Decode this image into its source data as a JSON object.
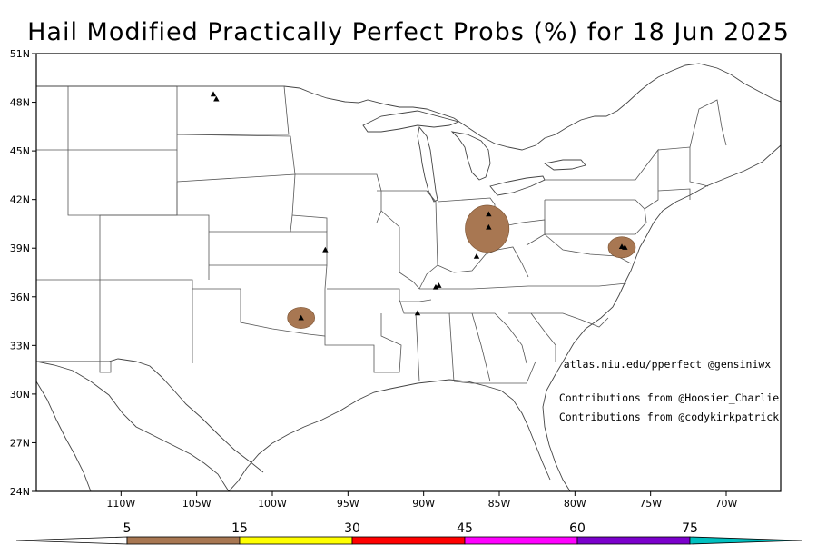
{
  "title": "Hail Modified Practically Perfect Probs (%) for 18 Jun 2025",
  "map": {
    "lat_ticks": [
      "51N",
      "48N",
      "45N",
      "42N",
      "39N",
      "36N",
      "33N",
      "30N",
      "27N",
      "24N"
    ],
    "lon_ticks": [
      "110W",
      "105W",
      "100W",
      "95W",
      "90W",
      "85W",
      "80W",
      "75W",
      "70W"
    ],
    "credits": [
      "atlas.niu.edu/pperfect @gensiniwx",
      "Contributions from @Hoosier_Charlie",
      "Contributions from @codykirkpatrick"
    ],
    "fill_color": "#a87752",
    "regions": [
      {
        "lon": -98.1,
        "lat": 34.7,
        "rlon": 0.9,
        "rlat": 0.65
      },
      {
        "lon": -85.8,
        "lat": 40.2,
        "rlon": 1.45,
        "rlat": 1.45
      },
      {
        "lon": -76.9,
        "lat": 39.05,
        "rlon": 0.9,
        "rlat": 0.65
      }
    ],
    "reports": [
      {
        "lon": -103.9,
        "lat": 48.5
      },
      {
        "lon": -103.7,
        "lat": 48.2
      },
      {
        "lon": -96.5,
        "lat": 38.9
      },
      {
        "lon": -98.1,
        "lat": 34.7
      },
      {
        "lon": -89.0,
        "lat": 36.7
      },
      {
        "lon": -89.2,
        "lat": 36.6
      },
      {
        "lon": -90.4,
        "lat": 35.0
      },
      {
        "lon": -86.5,
        "lat": 38.5
      },
      {
        "lon": -85.7,
        "lat": 41.1
      },
      {
        "lon": -85.7,
        "lat": 40.3
      },
      {
        "lon": -76.9,
        "lat": 39.1
      },
      {
        "lon": -76.7,
        "lat": 39.05
      }
    ]
  },
  "colorbar": {
    "labels": [
      "5",
      "15",
      "30",
      "45",
      "60",
      "75"
    ],
    "bins": [
      {
        "from": 0,
        "to": 5,
        "color": "#ffffff"
      },
      {
        "from": 5,
        "to": 15,
        "color": "#a87752"
      },
      {
        "from": 15,
        "to": 30,
        "color": "#ffff00"
      },
      {
        "from": 30,
        "to": 45,
        "color": "#ff0000"
      },
      {
        "from": 45,
        "to": 60,
        "color": "#ff00ff"
      },
      {
        "from": 60,
        "to": 75,
        "color": "#7b00cc"
      },
      {
        "from": 75,
        "to": 100,
        "color": "#00c0c0"
      }
    ]
  }
}
